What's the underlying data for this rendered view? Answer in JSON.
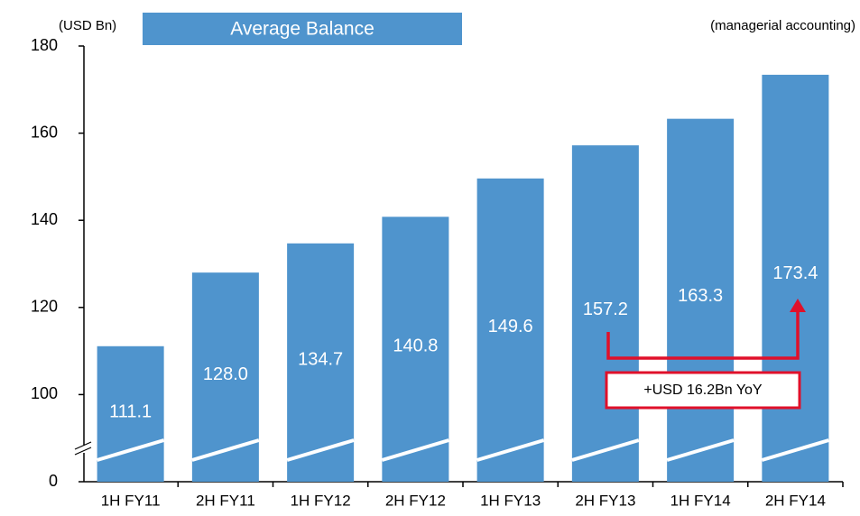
{
  "chart_data": {
    "type": "bar",
    "title": "Average Balance",
    "unit_label": "(USD Bn)",
    "note": "(managerial accounting)",
    "categories": [
      "1H FY11",
      "2H FY11",
      "1H FY12",
      "2H FY12",
      "1H FY13",
      "2H FY13",
      "1H FY14",
      "2H FY14"
    ],
    "values": [
      111.1,
      128.0,
      134.7,
      140.8,
      149.6,
      157.2,
      163.3,
      173.4
    ],
    "value_labels": [
      "111.1",
      "128.0",
      "134.7",
      "140.8",
      "149.6",
      "157.2",
      "163.3",
      "173.4"
    ],
    "color": "#4f94cd",
    "ylim": [
      0,
      180
    ],
    "yticks": [
      0,
      100,
      120,
      140,
      160,
      180
    ],
    "axis_break": true,
    "annotation": "+USD 16.2Bn YoY"
  }
}
